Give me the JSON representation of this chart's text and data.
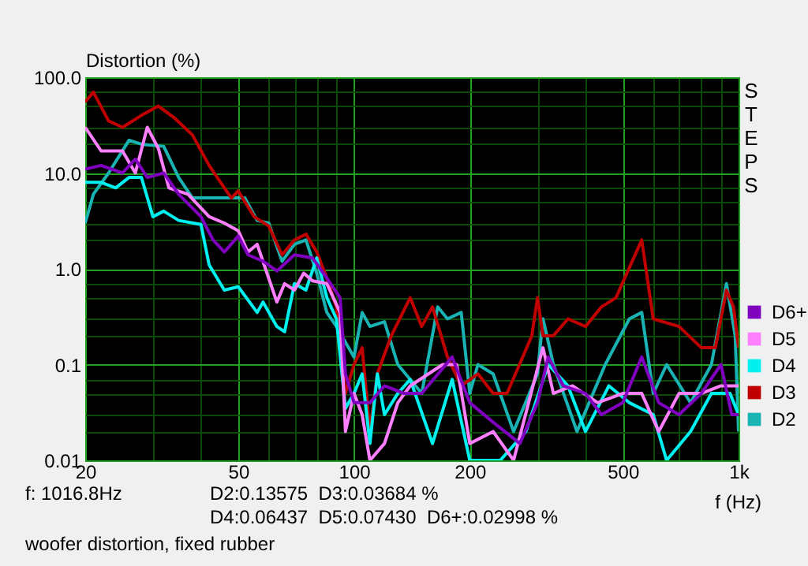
{
  "chart_data": {
    "type": "line",
    "xlabel": "f (Hz)",
    "ylabel": "Distortion (%)",
    "log": "xy",
    "grid": true,
    "legend": "right",
    "line_style": "solid",
    "xlim": [
      20,
      1000
    ],
    "ylim": [
      0.01,
      100
    ],
    "xticks": [
      20,
      {
        "value": 30,
        "label": null
      },
      {
        "value": 40,
        "label": null
      },
      50,
      {
        "value": 60,
        "label": null
      },
      {
        "value": 70,
        "label": null
      },
      {
        "value": 80,
        "label": null
      },
      {
        "value": 90,
        "label": null
      },
      100,
      200,
      {
        "value": 300,
        "label": null
      },
      {
        "value": 400,
        "label": null
      },
      500,
      {
        "value": 600,
        "label": null
      },
      {
        "value": 700,
        "label": null
      },
      {
        "value": 800,
        "label": null
      },
      {
        "value": 900,
        "label": null
      },
      {
        "value": 1000,
        "label": "1k"
      }
    ],
    "yticks": [
      0.01,
      {
        "value": 0.02,
        "label": null
      },
      {
        "value": 0.03,
        "label": null
      },
      {
        "value": 0.05,
        "label": null
      },
      {
        "value": 0.07,
        "label": null
      },
      {
        "value": 0.1,
        "label": "0.1"
      },
      {
        "value": 0.2,
        "label": null
      },
      {
        "value": 0.3,
        "label": null
      },
      {
        "value": 0.5,
        "label": null
      },
      {
        "value": 0.7,
        "label": null
      },
      {
        "value": 1,
        "label": "1.0"
      },
      {
        "value": 2,
        "label": null
      },
      {
        "value": 3,
        "label": null
      },
      {
        "value": 5,
        "label": null
      },
      {
        "value": 7,
        "label": null
      },
      {
        "value": 10,
        "label": "10.0"
      },
      {
        "value": 20,
        "label": null
      },
      {
        "value": 30,
        "label": null
      },
      {
        "value": 50,
        "label": null
      },
      {
        "value": 70,
        "label": null
      },
      {
        "value": 100,
        "label": "100.0"
      }
    ],
    "annotations": [
      "STEPS",
      "f: 1016.8Hz",
      "D2:0.13575  D3:0.03684 %",
      "D4:0.06437  D5:0.07430  D6+:0.02998 %",
      "woofer distortion, fixed rubber"
    ],
    "series": [
      {
        "name": "D2",
        "color": "#1ab3b3",
        "x": [
          20,
          21,
          23,
          26,
          28,
          32,
          35,
          38,
          45,
          52,
          56,
          60,
          65,
          70,
          75,
          80,
          85,
          90,
          100,
          105,
          110,
          120,
          130,
          150,
          165,
          175,
          190,
          200,
          210,
          230,
          260,
          300,
          310,
          330,
          380,
          450,
          520,
          560,
          600,
          650,
          750,
          850,
          930,
          980,
          1000
        ],
        "values": [
          3,
          6,
          10,
          22,
          20,
          19,
          9,
          5.5,
          5.5,
          5.5,
          3.2,
          3,
          1.2,
          1.8,
          2,
          0.9,
          0.35,
          0.25,
          0.12,
          0.35,
          0.25,
          0.28,
          0.1,
          0.05,
          0.4,
          0.3,
          0.35,
          0.05,
          0.1,
          0.08,
          0.02,
          0.08,
          0.3,
          0.1,
          0.02,
          0.1,
          0.3,
          0.35,
          0.05,
          0.1,
          0.04,
          0.1,
          0.7,
          0.2,
          0.02
        ]
      },
      {
        "name": "D3",
        "color": "#c00000",
        "x": [
          20,
          21,
          23,
          25,
          28,
          31,
          34,
          38,
          42,
          46,
          48,
          50,
          55,
          60,
          65,
          70,
          75,
          80,
          85,
          90,
          95,
          100,
          105,
          110,
          115,
          125,
          140,
          150,
          160,
          175,
          190,
          210,
          230,
          250,
          290,
          300,
          310,
          330,
          360,
          400,
          440,
          480,
          560,
          600,
          700,
          800,
          870,
          930,
          970,
          1000
        ],
        "values": [
          55,
          70,
          35,
          30,
          40,
          50,
          38,
          25,
          12,
          7,
          5.5,
          6.5,
          3.5,
          2.8,
          1.4,
          2,
          2.3,
          1.5,
          0.8,
          0.4,
          0.05,
          0.1,
          0.15,
          0.02,
          0.08,
          0.2,
          0.5,
          0.25,
          0.4,
          0.12,
          0.06,
          0.08,
          0.05,
          0.05,
          0.2,
          0.5,
          0.2,
          0.2,
          0.3,
          0.25,
          0.4,
          0.5,
          2,
          0.3,
          0.25,
          0.15,
          0.15,
          0.6,
          0.4,
          0.15
        ]
      },
      {
        "name": "D4",
        "color": "#00f0f0",
        "x": [
          20,
          22,
          24,
          26,
          28,
          30,
          32,
          35,
          40,
          42,
          46,
          50,
          56,
          58,
          63,
          66,
          70,
          75,
          80,
          85,
          90,
          95,
          100,
          105,
          110,
          115,
          120,
          130,
          140,
          160,
          180,
          200,
          240,
          280,
          320,
          360,
          400,
          460,
          520,
          600,
          650,
          750,
          850,
          950,
          1000
        ],
        "values": [
          8,
          8,
          7,
          9,
          9,
          3.5,
          4,
          3.2,
          2.9,
          1.1,
          0.6,
          0.65,
          0.35,
          0.45,
          0.25,
          0.22,
          0.7,
          0.6,
          1.3,
          0.5,
          0.3,
          0.035,
          0.05,
          0.08,
          0.015,
          0.08,
          0.03,
          0.05,
          0.07,
          0.015,
          0.07,
          0.01,
          0.01,
          0.02,
          0.1,
          0.06,
          0.02,
          0.06,
          0.04,
          0.03,
          0.01,
          0.02,
          0.05,
          0.05,
          0.03
        ]
      },
      {
        "name": "D5",
        "color": "#ff80ff",
        "x": [
          20,
          22,
          25,
          27,
          29,
          31,
          33,
          37,
          42,
          46,
          50,
          53,
          56,
          60,
          63,
          66,
          70,
          74,
          78,
          85,
          92,
          95,
          100,
          105,
          110,
          120,
          130,
          140,
          170,
          185,
          200,
          230,
          260,
          310,
          330,
          370,
          430,
          500,
          560,
          620,
          700,
          800,
          900,
          1000
        ],
        "values": [
          30,
          17,
          17,
          10,
          30,
          18,
          7,
          6,
          3.5,
          3,
          2.5,
          1.5,
          1.8,
          0.8,
          0.45,
          0.7,
          0.6,
          0.9,
          0.75,
          0.7,
          0.35,
          0.02,
          0.05,
          0.03,
          0.01,
          0.015,
          0.04,
          0.06,
          0.1,
          0.1,
          0.015,
          0.02,
          0.01,
          0.15,
          0.05,
          0.06,
          0.04,
          0.05,
          0.05,
          0.02,
          0.05,
          0.05,
          0.06,
          0.06
        ]
      },
      {
        "name": "D6+",
        "color": "#8000c0",
        "x": [
          20,
          22,
          25,
          27,
          29,
          32,
          35,
          40,
          43,
          46,
          50,
          53,
          58,
          63,
          70,
          78,
          85,
          92,
          95,
          100,
          110,
          120,
          135,
          150,
          180,
          200,
          230,
          270,
          300,
          320,
          350,
          400,
          440,
          500,
          560,
          620,
          700,
          800,
          900,
          960,
          1000
        ],
        "values": [
          11,
          12,
          10,
          14,
          9,
          10,
          6,
          3.5,
          2,
          1.5,
          2.2,
          1.4,
          1.2,
          0.95,
          1.4,
          1.3,
          0.8,
          0.5,
          0.08,
          0.04,
          0.04,
          0.06,
          0.05,
          0.05,
          0.12,
          0.04,
          0.025,
          0.015,
          0.04,
          0.12,
          0.06,
          0.05,
          0.03,
          0.04,
          0.12,
          0.04,
          0.03,
          0.05,
          0.1,
          0.03,
          0.03
        ]
      }
    ]
  }
}
